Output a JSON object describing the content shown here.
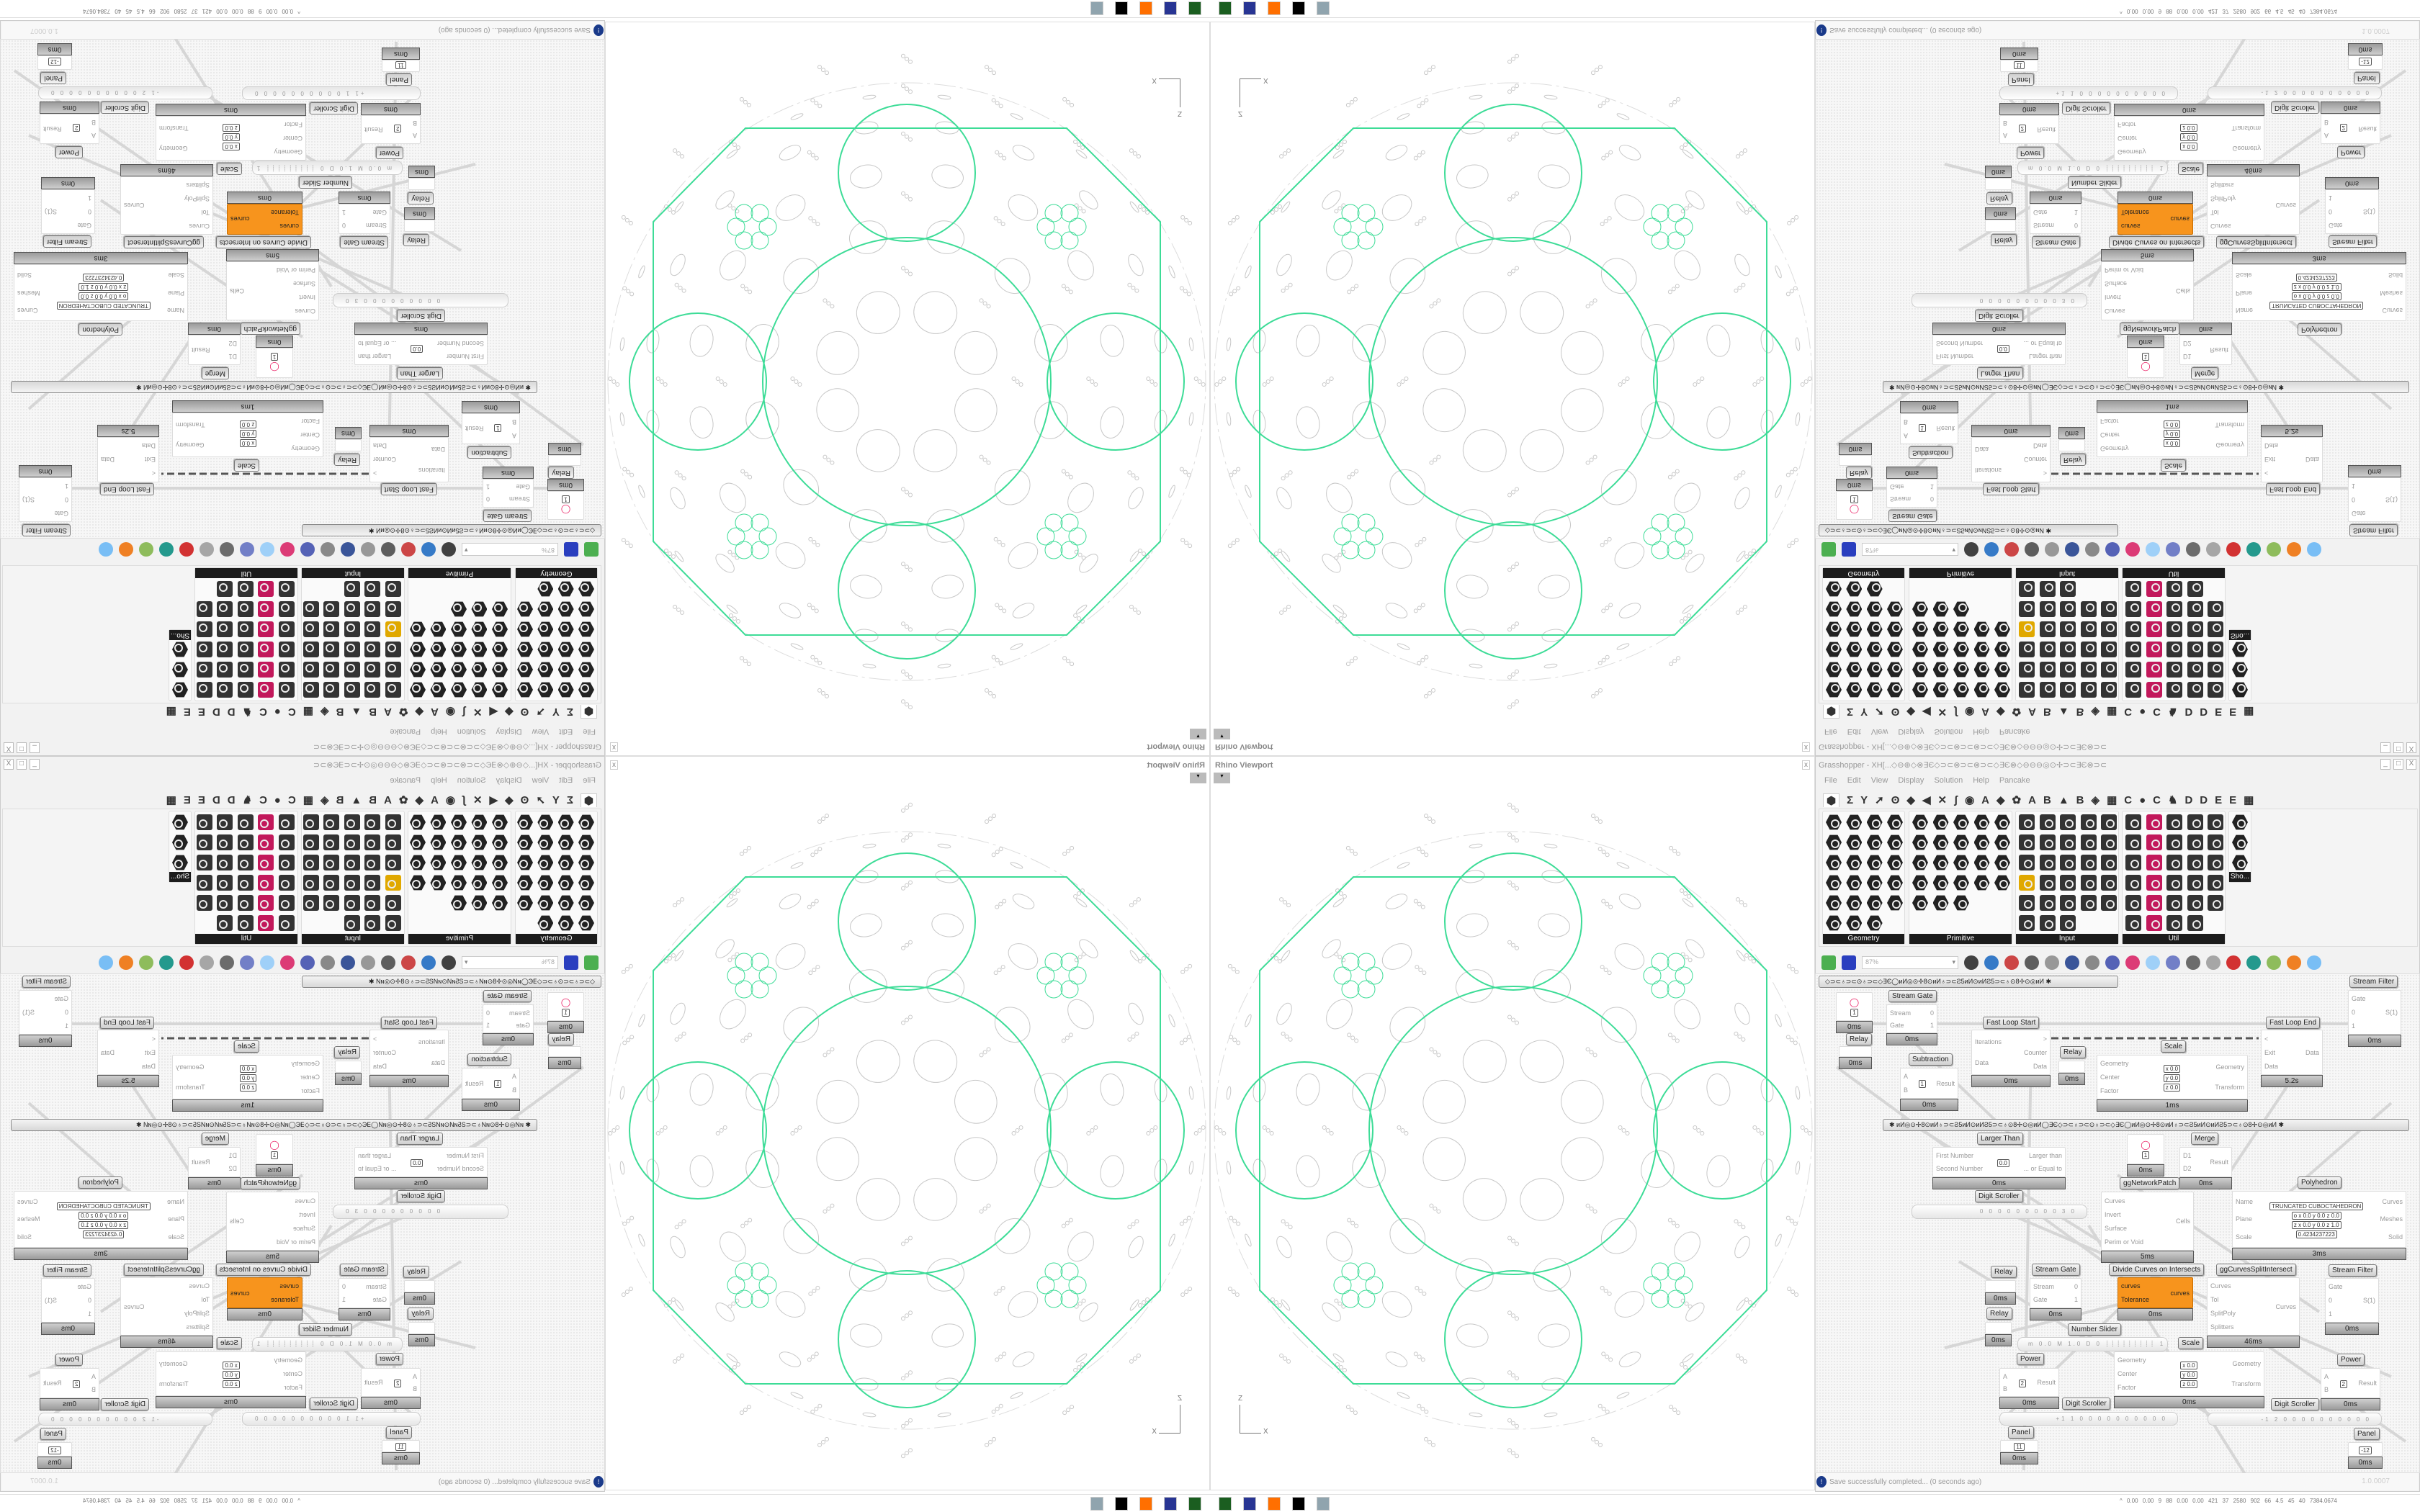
{
  "viewport": {
    "title": "Rhino Viewport",
    "close_label": "x",
    "dropdown_label": "▾",
    "axis_z": "Z",
    "axis_x": "X",
    "colors": {
      "geometry": "#3ddc97",
      "preview": "#c8c8c8"
    }
  },
  "grasshopper": {
    "title": "Grasshopper - XH[...◇⊖⊕◇⊗∃Є◇⊃⊂⊗⊃⊂⊗⊃⊂◇∃Є⊗◇⊖⊖⊖◎⊙✢⊃⊂∃Є⊗⊃⊂",
    "window_buttons": [
      "_",
      "□",
      "X"
    ],
    "menu": [
      "File",
      "Edit",
      "View",
      "Display",
      "Solution",
      "Help",
      "Pancake"
    ],
    "tabs": [
      "⬢",
      "Σ",
      "Y",
      "➚",
      "ʘ",
      "◆",
      "◀",
      "✕",
      "ʃ",
      "◉",
      "A",
      "◆",
      "✿",
      "A",
      "B",
      "▲",
      "B",
      "◈",
      "▦",
      "C",
      "●",
      "C",
      "♞",
      "D",
      "D",
      "E",
      "E",
      "▦"
    ],
    "ribbon_panels": [
      {
        "label": "Geometry",
        "icon": "geometry-component-icon"
      },
      {
        "label": "Primitive",
        "icon": "primitive-component-icon"
      },
      {
        "label": "Input",
        "icon": "input-component-icon"
      },
      {
        "label": "Util",
        "icon": "util-component-icon"
      },
      {
        "label": "Sho...",
        "icon": "show-component-icon"
      }
    ],
    "toolbar": {
      "zoom_value": "87%",
      "icons": [
        "new-document-icon",
        "save-icon",
        "zoom-extents-icon",
        "preview-eye-icon",
        "sketch-icon",
        "bake-icon",
        "email-icon",
        "gha-icon",
        "canvas-icon",
        "search-icon",
        "package-icon",
        "lightbulb-icon",
        "wires-icon",
        "preview-off-icon",
        "wireframe-icon",
        "shaded-icon",
        "surface-icon",
        "mesh-icon",
        "material-icon",
        "sphere-icon"
      ],
      "accent_colors": {
        "new": "#4caf50",
        "save": "#2a3fbf",
        "shaded": "#cc1111"
      }
    },
    "status": {
      "message": "Save successfully completed... (0 seconds ago)",
      "version": "1.0.0007"
    }
  },
  "canvas": {
    "groups": [
      "◇⊃⊂♁⊃⊂⊙♁⊃⊂◇∃Є◯ᴎИ◎⊙✢8⊙ᴎИ♁⊃⊂Ƨ5ᴎИ⊙ᴎИƧ5⊃⊂♁⊙8✢⊙◎ᴎИ  ✱",
      "✱  ᴎИ◎⊙✢8⊙ᴎИ♁⊃⊂Ƨ5ᴎИ⊙ᴎИƧ5⊃⊂♁⊙8✢⊙◎ᴎИ◯∃Є◇⊃⊂♁⊃⊂⊙♁⊃⊂◇∃Є◯ᴎИ◎⊙✢8⊙ᴎИ♁⊃⊂Ƨ5ᴎИ⊙ᴎИƧ5⊃⊂♁⊙8✢⊙◎ᴎИ  ✱"
    ],
    "components": [
      {
        "name": "",
        "inputs": [],
        "outputs": [],
        "values": [
          "1"
        ],
        "time": "0ms",
        "icon": "circle-param-icon"
      },
      {
        "name": "Stream Gate",
        "inputs": [
          "Stream",
          "Gate"
        ],
        "outputs": [
          "0",
          "1"
        ],
        "values": [],
        "time": "0ms",
        "icon": "stream-gate-icon"
      },
      {
        "name": "Relay",
        "inputs": [],
        "outputs": [],
        "values": [],
        "time": "0ms",
        "icon": "relay-icon"
      },
      {
        "name": "Fast Loop Start",
        "inputs": [
          "Iterations",
          "Data"
        ],
        "outputs": [
          ">",
          "Counter",
          "Data"
        ],
        "values": [],
        "time": "0ms",
        "icon": "loop-start-icon"
      },
      {
        "name": "Relay",
        "inputs": [],
        "outputs": [],
        "values": [],
        "time": "0ms",
        "icon": "relay-icon"
      },
      {
        "name": "Scale",
        "inputs": [
          "Geometry",
          "Center",
          "Factor"
        ],
        "outputs": [
          "Geometry",
          "Transform"
        ],
        "values": [
          "x 0.0",
          "y 0.0",
          "z 0.0"
        ],
        "time": "1ms",
        "icon": "scale-icon"
      },
      {
        "name": "Fast Loop End",
        "inputs": [
          "<",
          "Exit",
          "Data"
        ],
        "outputs": [
          "Data"
        ],
        "values": [],
        "time": "5.2s",
        "icon": "loop-end-icon"
      },
      {
        "name": "Stream Filter",
        "inputs": [
          "Gate",
          "0",
          "1"
        ],
        "outputs": [
          "S(1)"
        ],
        "values": [],
        "time": "0ms",
        "icon": "stream-filter-icon"
      },
      {
        "name": "Subtraction",
        "inputs": [
          "A",
          "B"
        ],
        "outputs": [
          "Result"
        ],
        "values": [
          "1"
        ],
        "time": "0ms",
        "icon": "subtraction-icon"
      },
      {
        "name": "Larger Than",
        "inputs": [
          "First Number",
          "Second Number"
        ],
        "outputs": [
          "Larger than",
          "... or Equal to"
        ],
        "values": [
          "0.0"
        ],
        "time": "0ms",
        "icon": "larger-than-icon"
      },
      {
        "name": "",
        "inputs": [],
        "outputs": [],
        "values": [
          "1"
        ],
        "time": "0ms",
        "icon": "circle-param-icon"
      },
      {
        "name": "Merge",
        "inputs": [
          "D1",
          "D2"
        ],
        "outputs": [
          "Result"
        ],
        "values": [],
        "time": "0ms",
        "icon": "merge-icon"
      },
      {
        "name": "ggNetworkPatch",
        "inputs": [
          "Curves",
          "Invert",
          "Surface",
          "Perim or Void"
        ],
        "outputs": [
          "Cells"
        ],
        "values": [],
        "time": "5ms",
        "icon": "network-patch-icon"
      },
      {
        "name": "Polyhedron",
        "inputs": [
          "Name",
          "Plane",
          "Scale"
        ],
        "outputs": [
          "Curves",
          "Meshes",
          "Solid"
        ],
        "values": [
          "TRUNCATED CUBOCTAHEDRON",
          "o x 0.0 y 0.0 z 0.0",
          "z x 0.0 y 0.0 z 1.0",
          "0.4234237223"
        ],
        "time": "3ms",
        "icon": "polyhedron-icon"
      },
      {
        "name": "Relay",
        "inputs": [],
        "outputs": [],
        "values": [],
        "time": "0ms",
        "icon": "relay-icon"
      },
      {
        "name": "Stream Gate",
        "inputs": [
          "Stream",
          "Gate"
        ],
        "outputs": [
          "0",
          "1"
        ],
        "values": [],
        "time": "0ms",
        "icon": "stream-gate-icon"
      },
      {
        "name": "Divide Curves on Intersects",
        "inputs": [
          "curves",
          "Tolerance"
        ],
        "outputs": [
          "curves"
        ],
        "values": [],
        "time": "0ms",
        "icon": "divide-curves-icon"
      },
      {
        "name": "ggCurvesSplitIntersect",
        "inputs": [
          "Curves",
          "Tol",
          "SplitPoly",
          "Splitters"
        ],
        "outputs": [
          "Curves"
        ],
        "values": [],
        "time": "46ms",
        "icon": "curves-split-icon"
      },
      {
        "name": "Stream Filter",
        "inputs": [
          "Gate",
          "0",
          "1"
        ],
        "outputs": [
          "S(1)"
        ],
        "values": [],
        "time": "0ms",
        "icon": "stream-filter-icon"
      },
      {
        "name": "Relay",
        "inputs": [],
        "outputs": [],
        "values": [],
        "time": "0ms",
        "icon": "relay-icon"
      },
      {
        "name": "Scale",
        "inputs": [
          "Geometry",
          "Center",
          "Factor"
        ],
        "outputs": [
          "Geometry",
          "Transform"
        ],
        "values": [
          "x 0.0",
          "y 0.0",
          "z 0.0"
        ],
        "time": "0ms",
        "icon": "scale-icon"
      },
      {
        "name": "Power",
        "inputs": [
          "A",
          "B"
        ],
        "outputs": [
          "Result"
        ],
        "values": [
          "2"
        ],
        "time": "0ms",
        "icon": "power-icon"
      },
      {
        "name": "Power",
        "inputs": [
          "A",
          "B"
        ],
        "outputs": [
          "Result"
        ],
        "values": [
          "2"
        ],
        "time": "0ms",
        "icon": "power-icon"
      },
      {
        "name": "Panel",
        "inputs": [],
        "outputs": [],
        "values": [
          "11"
        ],
        "time": "0ms",
        "icon": "panel-icon"
      },
      {
        "name": "Panel",
        "inputs": [],
        "outputs": [],
        "values": [
          "-12"
        ],
        "time": "0ms",
        "icon": "panel-icon"
      }
    ],
    "sliders": [
      {
        "name": "Digit Scroller",
        "value": "0 0 0 0 0 0 0 0 0 3 0"
      },
      {
        "name": "Number Slider",
        "value": "m 0.0  M 1.0  D 0  ┊┊┊┊┊┊┊┊┊ 1 ◯"
      },
      {
        "name": "Digit Scroller",
        "value": "+1 1 0 0 0 0 0 0 0 0 0 0"
      },
      {
        "name": "Digit Scroller",
        "value": "-1 2 0 0 0 0 0 0 0 0 0 0"
      }
    ]
  },
  "taskbar": {
    "icons": [
      "terminal-icon",
      "floppy-64-icon",
      "firefox-icon",
      "inkscape-icon",
      "calculator-icon"
    ],
    "perf_readout": "^ 0.00 0.00 9 88 0.00 0.00 421 37 2580 902 66 4.5 45 40 7384.0674"
  }
}
